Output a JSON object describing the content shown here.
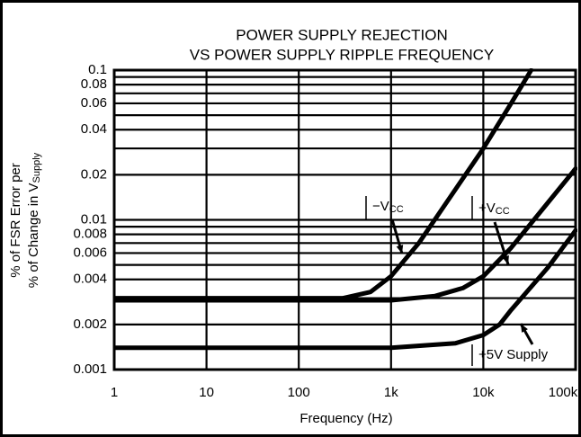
{
  "chart_data": {
    "type": "line",
    "title": [
      "POWER SUPPLY REJECTION",
      "VS POWER SUPPLY RIPPLE FREQUENCY"
    ],
    "x_label": "Frequency (Hz)",
    "y_label": {
      "line1": "% of FSR Error per",
      "line2": "% of Change in V",
      "line2_sub": "Supply"
    },
    "log_x": true,
    "log_y": true,
    "grid": true,
    "xlim": [
      1,
      100000
    ],
    "xticks": [
      1,
      10,
      100,
      {
        "value": 1000,
        "label": "1k"
      },
      {
        "value": 10000,
        "label": "10k"
      },
      {
        "value": 100000,
        "label": "100k"
      }
    ],
    "ylim": [
      0.001,
      0.1
    ],
    "yticks": [
      0.1,
      0.08,
      0.06,
      0.04,
      0.02,
      0.01,
      0.008,
      0.006,
      0.004,
      0.002,
      0.001
    ],
    "y_minor_ticks": [
      0.003,
      0.005,
      0.007,
      0.009,
      0.03,
      0.05,
      0.07,
      0.09
    ],
    "series": [
      {
        "name": "−V",
        "name_sub": "CC",
        "color": "#000000",
        "x": [
          1,
          10,
          100,
          300,
          600,
          1000,
          2000,
          5000,
          10000,
          20000,
          33000
        ],
        "values": [
          0.003,
          0.003,
          0.003,
          0.003,
          0.0033,
          0.0042,
          0.007,
          0.016,
          0.03,
          0.06,
          0.1
        ]
      },
      {
        "name": "+V",
        "name_sub": "CC",
        "color": "#000000",
        "x": [
          1,
          10,
          100,
          1000,
          3000,
          6000,
          10000,
          20000,
          50000,
          100000
        ],
        "values": [
          0.0029,
          0.0029,
          0.0029,
          0.0029,
          0.0031,
          0.0035,
          0.0042,
          0.0065,
          0.013,
          0.022
        ]
      },
      {
        "name": "+5V Supply",
        "color": "#000000",
        "x": [
          1,
          10,
          100,
          1000,
          5000,
          10000,
          15000,
          20000,
          50000,
          100000
        ],
        "values": [
          0.0014,
          0.0014,
          0.0014,
          0.0014,
          0.0015,
          0.0017,
          0.002,
          0.0025,
          0.0048,
          0.0085
        ]
      }
    ]
  }
}
